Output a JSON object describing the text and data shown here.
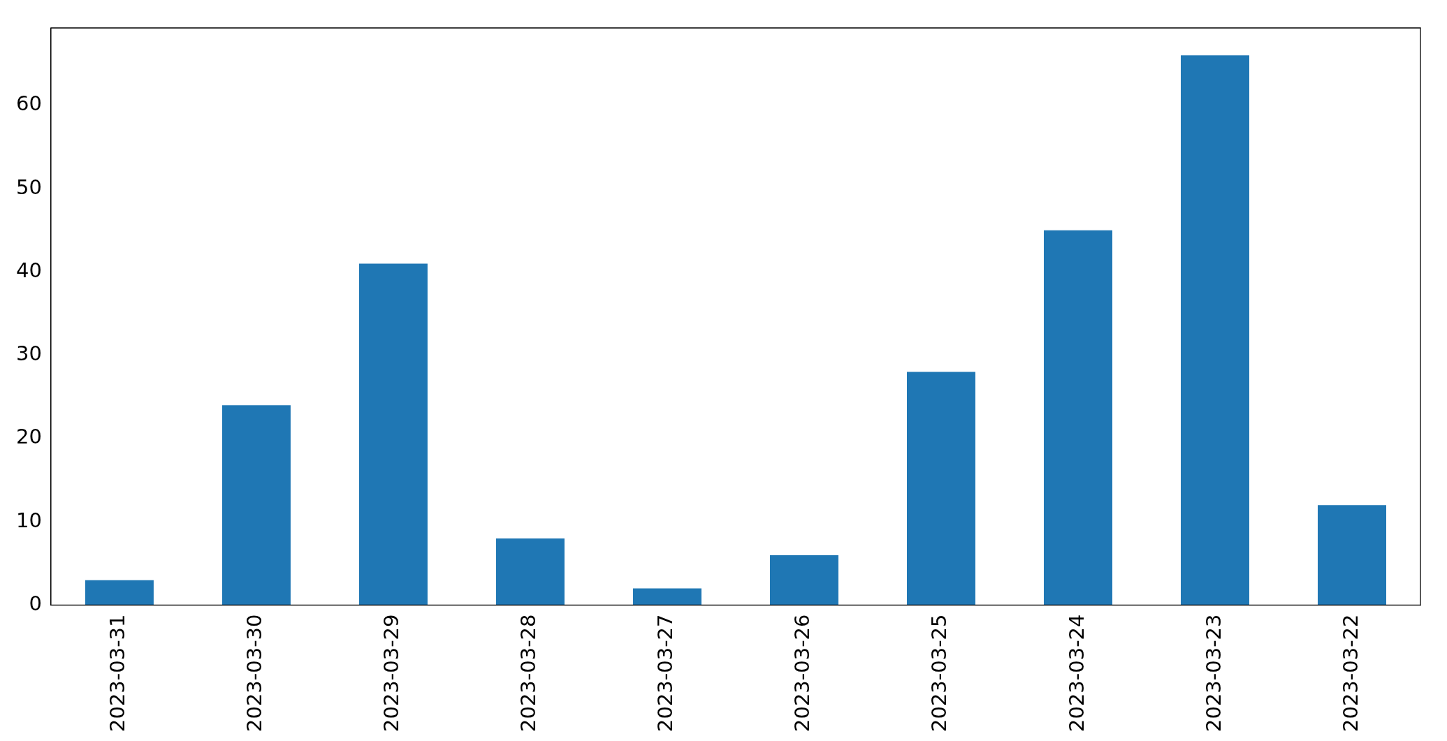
{
  "chart_data": {
    "type": "bar",
    "categories": [
      "2023-03-31",
      "2023-03-30",
      "2023-03-29",
      "2023-03-28",
      "2023-03-27",
      "2023-03-26",
      "2023-03-25",
      "2023-03-24",
      "2023-03-23",
      "2023-03-22"
    ],
    "values": [
      3,
      24,
      41,
      8,
      2,
      6,
      28,
      45,
      66,
      12
    ],
    "color": "#1f77b4",
    "ylim": [
      0,
      69.3
    ],
    "yticks": [
      0,
      10,
      20,
      30,
      40,
      50,
      60
    ],
    "grid": false,
    "legend": false
  }
}
